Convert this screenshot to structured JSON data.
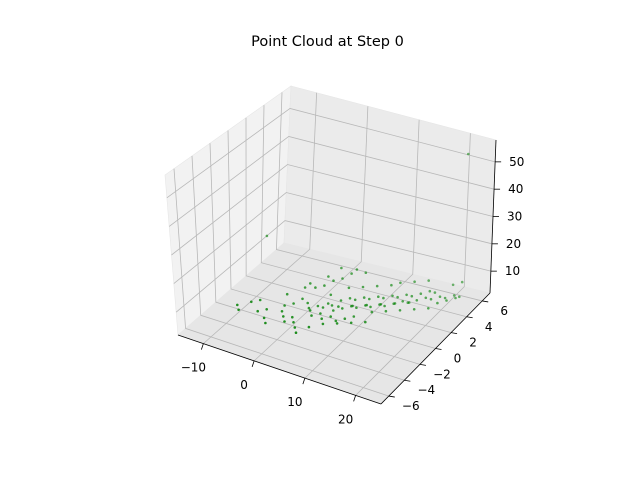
{
  "chart_data": {
    "type": "scatter",
    "projection": "3d",
    "title": "Point Cloud at Step 0",
    "xlabel": "",
    "ylabel": "",
    "zlabel": "",
    "grid": true,
    "x_ticks": [
      "−10",
      "0",
      "10",
      "20"
    ],
    "y_ticks": [
      "−6",
      "−4",
      "−2",
      "0",
      "2",
      "4",
      "6"
    ],
    "z_ticks": [
      "10",
      "20",
      "30",
      "40",
      "50"
    ],
    "point_color": "#008000",
    "points": [
      [
        -14,
        4,
        12
      ],
      [
        22,
        5.5,
        56
      ],
      [
        -3,
        -1,
        5
      ],
      [
        -2,
        -0.5,
        5
      ],
      [
        -1,
        0,
        6
      ],
      [
        -2,
        1,
        7
      ],
      [
        -4,
        0,
        6
      ],
      [
        0,
        0,
        5
      ],
      [
        1,
        -0.5,
        5
      ],
      [
        2,
        0,
        5
      ],
      [
        3,
        0,
        5
      ],
      [
        4,
        0.5,
        5
      ],
      [
        5,
        0,
        5
      ],
      [
        6,
        0.5,
        5
      ],
      [
        7,
        1,
        5
      ],
      [
        8,
        1,
        5
      ],
      [
        9,
        1.5,
        5
      ],
      [
        10,
        1.5,
        5
      ],
      [
        11,
        2,
        5
      ],
      [
        12,
        2,
        5
      ],
      [
        13,
        2.5,
        5
      ],
      [
        14,
        3,
        5
      ],
      [
        15,
        3,
        5
      ],
      [
        16,
        3.5,
        5
      ],
      [
        17,
        4,
        5
      ],
      [
        18,
        4,
        5
      ],
      [
        19,
        4.5,
        5
      ],
      [
        20,
        4.5,
        5
      ],
      [
        21,
        5,
        5
      ],
      [
        22,
        5,
        5
      ],
      [
        5,
        1,
        6
      ],
      [
        6,
        1.5,
        6
      ],
      [
        7,
        1.5,
        6
      ],
      [
        8,
        2,
        6
      ],
      [
        9,
        2,
        6
      ],
      [
        10,
        2.5,
        6
      ],
      [
        11,
        2.5,
        6
      ],
      [
        12,
        3,
        6
      ],
      [
        13,
        3,
        6
      ],
      [
        14,
        3.5,
        6
      ],
      [
        15,
        3.5,
        6
      ],
      [
        16,
        4,
        6
      ],
      [
        17,
        4.5,
        6
      ],
      [
        18,
        4.5,
        6
      ],
      [
        4,
        0,
        7
      ],
      [
        6,
        0,
        7
      ],
      [
        8,
        0.5,
        7
      ],
      [
        10,
        1,
        7
      ],
      [
        12,
        1.5,
        7
      ],
      [
        14,
        2,
        7
      ],
      [
        16,
        2.5,
        7
      ],
      [
        2,
        -1,
        6
      ],
      [
        3,
        -1.5,
        6
      ],
      [
        4,
        -1,
        6
      ],
      [
        5,
        -1.5,
        6
      ],
      [
        6,
        -1,
        6
      ],
      [
        0,
        1,
        8
      ],
      [
        1,
        1.5,
        8
      ],
      [
        2,
        2,
        9
      ],
      [
        3,
        2.5,
        9
      ],
      [
        4,
        3,
        10
      ],
      [
        -1,
        1,
        9
      ],
      [
        1,
        2,
        10
      ],
      [
        2,
        3,
        11
      ],
      [
        5,
        3,
        12
      ],
      [
        6,
        3.5,
        10
      ],
      [
        -5,
        -2,
        5
      ],
      [
        -6,
        -2.5,
        5
      ],
      [
        -4,
        -3,
        5
      ],
      [
        -3,
        -3.5,
        5
      ],
      [
        -8,
        -2,
        6
      ],
      [
        -7,
        -1.5,
        6
      ],
      [
        0,
        -2,
        5
      ],
      [
        1,
        -2.5,
        5
      ],
      [
        2,
        -3,
        5
      ],
      [
        3,
        -3.5,
        5
      ],
      [
        4,
        -2.5,
        5
      ],
      [
        7,
        -1,
        5
      ],
      [
        8,
        -0.5,
        5
      ],
      [
        9,
        0,
        5
      ],
      [
        11,
        1,
        5
      ],
      [
        13,
        1.5,
        5
      ],
      [
        15,
        2,
        5
      ],
      [
        17,
        2.5,
        5
      ],
      [
        19,
        3,
        5
      ],
      [
        20,
        3.5,
        6
      ],
      [
        21,
        4,
        6
      ],
      [
        22,
        4.5,
        6
      ],
      [
        20,
        5.5,
        7
      ],
      [
        21,
        6,
        7
      ],
      [
        3,
        1,
        7
      ],
      [
        5,
        2,
        8
      ],
      [
        7,
        2.5,
        8
      ],
      [
        9,
        3,
        8
      ],
      [
        11,
        3.5,
        8
      ],
      [
        12,
        4,
        8
      ],
      [
        14,
        4.5,
        8
      ],
      [
        16,
        5,
        8
      ],
      [
        -2,
        -2,
        6
      ],
      [
        -1,
        -2.5,
        6
      ],
      [
        0,
        -3,
        6
      ],
      [
        6,
        -2,
        6
      ],
      [
        8,
        -1.5,
        6
      ],
      [
        10,
        -1,
        6
      ],
      [
        12,
        -0.5,
        6
      ],
      [
        -9,
        -3,
        5
      ],
      [
        -10,
        -2.5,
        5
      ]
    ]
  }
}
